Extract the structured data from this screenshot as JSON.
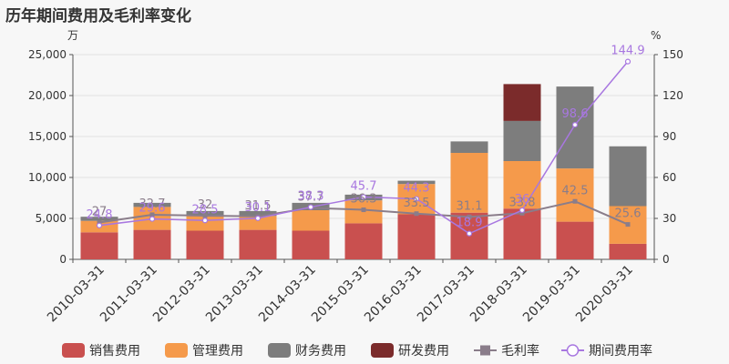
{
  "title": "历年期间费用及毛利率变化",
  "chart_data": {
    "type": "bar",
    "stacked": true,
    "categories": [
      "2010-03-31",
      "2011-03-31",
      "2012-03-31",
      "2013-03-31",
      "2014-03-31",
      "2015-03-31",
      "2016-03-31",
      "2017-03-31",
      "2018-03-31",
      "2019-03-31",
      "2020-03-31"
    ],
    "y_left": {
      "unit": "万",
      "ylim": [
        0,
        25000
      ],
      "ticks": [
        "0",
        "5,000",
        "10,000",
        "15,000",
        "20,000",
        "25,000"
      ]
    },
    "y_right": {
      "unit": "%",
      "ylim": [
        0,
        150
      ],
      "ticks": [
        "0",
        "30",
        "60",
        "90",
        "120",
        "150"
      ]
    },
    "grid": true,
    "legend_position": "bottom",
    "series": [
      {
        "name": "销售费用",
        "type": "bar",
        "color": "#c9504f",
        "values": [
          3300,
          3600,
          3500,
          3600,
          3500,
          4400,
          5500,
          5700,
          6200,
          4600,
          1900
        ]
      },
      {
        "name": "管理费用",
        "type": "bar",
        "color": "#f59a4b",
        "values": [
          1400,
          2800,
          1900,
          1700,
          2500,
          2800,
          3700,
          7300,
          5800,
          6500,
          4600
        ]
      },
      {
        "name": "财务费用",
        "type": "bar",
        "color": "#7d7d7d",
        "values": [
          500,
          500,
          500,
          600,
          900,
          700,
          400,
          1400,
          4900,
          10000,
          7300
        ]
      },
      {
        "name": "研发费用",
        "type": "bar",
        "color": "#7b2b2b",
        "values": [
          0,
          0,
          0,
          0,
          0,
          0,
          0,
          0,
          4500,
          0,
          0
        ]
      },
      {
        "name": "毛利率",
        "type": "line",
        "color": "#8a7d8a",
        "axis": "right",
        "values": [
          27,
          32.7,
          32,
          31.5,
          37.7,
          36.3,
          33.5,
          31.1,
          33.8,
          42.5,
          25.6
        ],
        "labels": [
          "27",
          "32.7",
          "32",
          "31.5",
          "37.7",
          "36.3",
          "33.5",
          "31.1",
          "33.8",
          "42.5",
          "25.6"
        ]
      },
      {
        "name": "期间费用率",
        "type": "line",
        "color": "#a877e0",
        "axis": "right",
        "values": [
          24.8,
          29.6,
          28.5,
          30.1,
          38.3,
          45.7,
          44.3,
          18.9,
          36,
          98.6,
          144.9
        ],
        "labels": [
          "24.8",
          "29.6",
          "28.5",
          "30.1",
          "38.3",
          "45.7",
          "44.3",
          "18.9",
          "36",
          "98.6",
          "144.9"
        ]
      }
    ]
  }
}
